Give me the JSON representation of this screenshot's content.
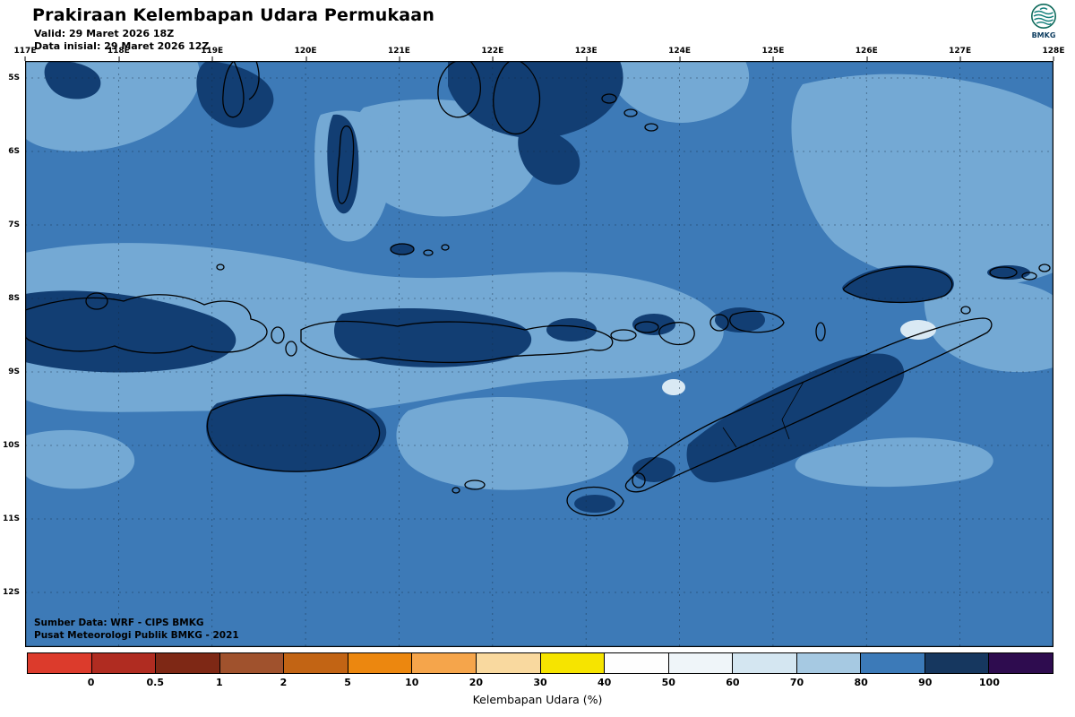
{
  "header": {
    "title": "Prakiraan Kelembapan Udara Permukaan",
    "valid_label": "Valid: 29 Maret 2026 18Z",
    "init_label": "Data inisial: 29 Maret 2026 12Z",
    "logo_label": "BMKG"
  },
  "map": {
    "lon_labels": [
      "117E",
      "118E",
      "119E",
      "120E",
      "121E",
      "122E",
      "123E",
      "124E",
      "125E",
      "126E",
      "127E",
      "128E"
    ],
    "lat_labels": [
      "5S",
      "6S",
      "7S",
      "8S",
      "9S",
      "10S",
      "11S",
      "12S"
    ],
    "source_line1": "Sumber Data: WRF - CIPS BMKG",
    "source_line2": "Pusat Meteorologi Publik BMKG -  2021",
    "colors": {
      "humidity_base_80_90": "#3D7AB7",
      "humidity_light_70_80": "#74A9D4",
      "humidity_dark_90_100": "#123E73",
      "humidity_vlight_50_60": "#D9E9F4",
      "coastline": "#000000",
      "grid": "#13293F"
    }
  },
  "legend": {
    "caption": "Kelembapan Udara (%)",
    "tick_labels": [
      "0",
      "0.5",
      "1",
      "2",
      "5",
      "10",
      "20",
      "30",
      "40",
      "50",
      "60",
      "70",
      "80",
      "90",
      "100"
    ],
    "segment_colors": [
      "#DC3B2C",
      "#B02C21",
      "#7E2815",
      "#A0522D",
      "#C26414",
      "#EC870F",
      "#F5A54B",
      "#F9D99F",
      "#F6E400",
      "#FEFEFE",
      "#EFF5F9",
      "#D4E6F1",
      "#A6C9E2",
      "#3C7AB8",
      "#16375F",
      "#2E0C4F"
    ]
  }
}
